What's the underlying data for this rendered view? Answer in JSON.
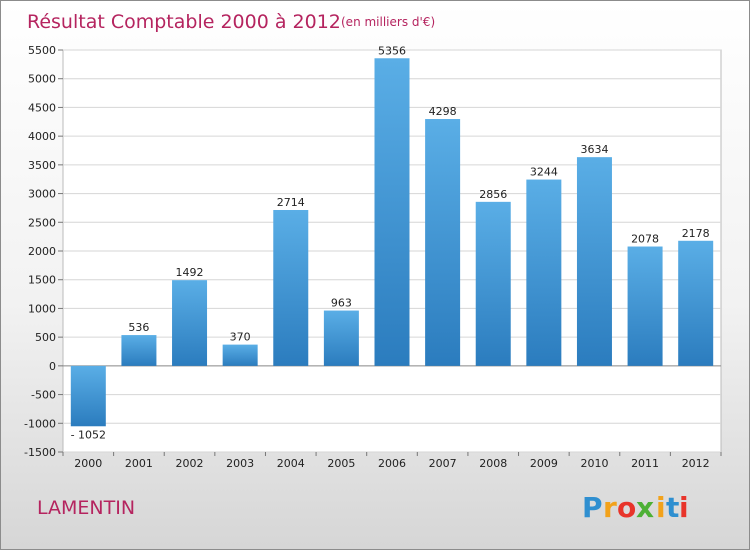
{
  "chart_data": {
    "type": "bar",
    "title": "Résultat Comptable 2000 à 2012",
    "subtitle": "(en milliers d'€)",
    "categories": [
      "2000",
      "2001",
      "2002",
      "2003",
      "2004",
      "2005",
      "2006",
      "2007",
      "2008",
      "2009",
      "2010",
      "2011",
      "2012"
    ],
    "values": [
      -1052,
      536,
      1492,
      370,
      2714,
      963,
      5356,
      4298,
      2856,
      3244,
      3634,
      2078,
      2178
    ],
    "ylim": [
      -1500,
      5500
    ],
    "yticks": [
      -1500,
      -1000,
      -500,
      0,
      500,
      1000,
      1500,
      2000,
      2500,
      3000,
      3500,
      4000,
      4500,
      5000,
      5500
    ],
    "xlabel": "",
    "ylabel": "",
    "grid": true,
    "bar_color": "#3a8fd0"
  },
  "location": "LAMENTIN",
  "logo": {
    "letters": [
      "P",
      "r",
      "o",
      "x",
      "i",
      "t",
      "i"
    ],
    "colors": [
      "#2f8fd0",
      "#f2a21b",
      "#e8342a",
      "#4db035",
      "#f2a21b",
      "#2f8fd0",
      "#e8342a"
    ]
  }
}
